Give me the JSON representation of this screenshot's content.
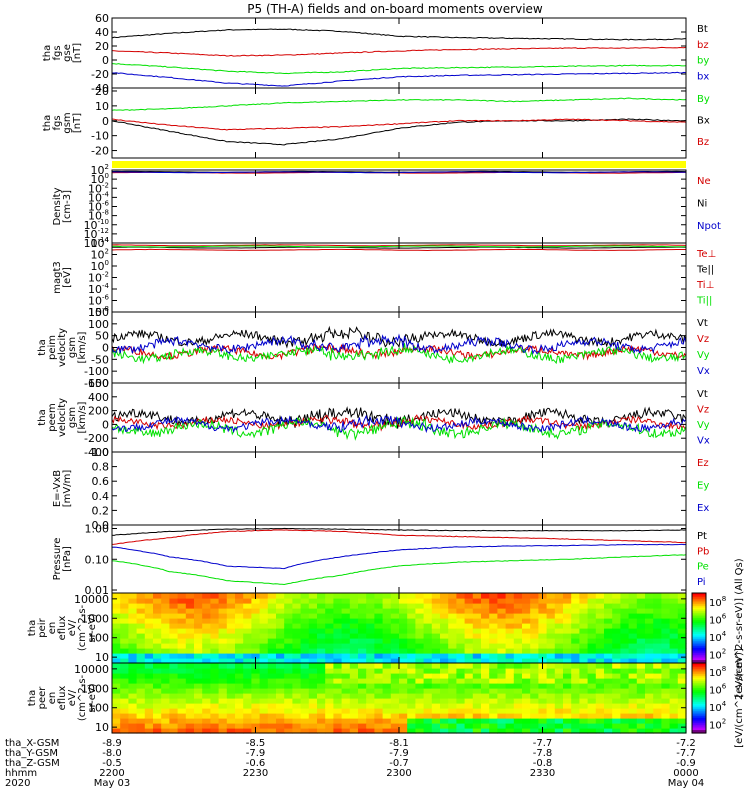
{
  "title": "P5 (TH-A) fields and on-board moments overview",
  "colors": {
    "black": "#000000",
    "red": "#d40000",
    "green": "#00e000",
    "blue": "#0000cc",
    "yellow": "#ffff00"
  },
  "chart_data": [
    {
      "id": "fgs_gse",
      "type": "line",
      "ylabel": [
        "tha",
        "fgs",
        "gse",
        "[nT]"
      ],
      "ylim": [
        -40,
        60
      ],
      "yticks": [
        -40,
        -20,
        0,
        20,
        40,
        60
      ],
      "series": [
        {
          "name": "Bt",
          "color": "black",
          "x": [
            0,
            0.1,
            0.2,
            0.3,
            0.4,
            0.5,
            0.6,
            0.7,
            0.8,
            0.9,
            1.0
          ],
          "y": [
            32,
            38,
            43,
            44,
            41,
            34,
            32,
            31,
            30,
            29,
            30
          ]
        },
        {
          "name": "bz",
          "color": "red",
          "x": [
            0,
            0.1,
            0.2,
            0.3,
            0.4,
            0.5,
            0.6,
            0.7,
            0.8,
            0.9,
            1.0
          ],
          "y": [
            13,
            10,
            6,
            7,
            10,
            13,
            15,
            16,
            17,
            17,
            18
          ]
        },
        {
          "name": "by",
          "color": "green",
          "x": [
            0,
            0.1,
            0.2,
            0.3,
            0.4,
            0.5,
            0.6,
            0.7,
            0.8,
            0.9,
            1.0
          ],
          "y": [
            -5,
            -10,
            -16,
            -19,
            -17,
            -12,
            -11,
            -10,
            -9,
            -8,
            -8
          ]
        },
        {
          "name": "bx",
          "color": "blue",
          "x": [
            0,
            0.1,
            0.2,
            0.3,
            0.4,
            0.5,
            0.6,
            0.7,
            0.8,
            0.9,
            1.0
          ],
          "y": [
            -18,
            -25,
            -33,
            -37,
            -30,
            -24,
            -22,
            -21,
            -20,
            -19,
            -18
          ]
        }
      ]
    },
    {
      "id": "fgs_gsm",
      "type": "line",
      "ylabel": [
        "tha",
        "fgs",
        "gsm",
        "[nT]"
      ],
      "ylim": [
        -25,
        22
      ],
      "yticks": [
        -20,
        -10,
        0,
        10,
        20
      ],
      "series": [
        {
          "name": "By",
          "color": "green",
          "x": [
            0,
            0.1,
            0.2,
            0.3,
            0.4,
            0.5,
            0.6,
            0.7,
            0.8,
            0.9,
            1.0
          ],
          "y": [
            7,
            8,
            10,
            12,
            13,
            14,
            14,
            13,
            14,
            15,
            14
          ]
        },
        {
          "name": "Bx",
          "color": "black",
          "x": [
            0,
            0.1,
            0.2,
            0.3,
            0.4,
            0.5,
            0.6,
            0.7,
            0.8,
            0.9,
            1.0
          ],
          "y": [
            0,
            -7,
            -14,
            -16,
            -12,
            -5,
            -1,
            0,
            0,
            1,
            0
          ]
        },
        {
          "name": "Bz",
          "color": "red",
          "x": [
            0,
            0.1,
            0.2,
            0.3,
            0.4,
            0.5,
            0.6,
            0.7,
            0.8,
            0.9,
            1.0
          ],
          "y": [
            1,
            -3,
            -6,
            -5,
            -4,
            -2,
            0,
            0,
            1,
            0,
            -1
          ]
        }
      ]
    },
    {
      "id": "density",
      "type": "line",
      "log": true,
      "ylabel": [
        "Density",
        "[cm-3]"
      ],
      "ylim_exp": [
        -14,
        2
      ],
      "yticks_exp": [
        -14,
        -12,
        -10,
        -8,
        -6,
        -4,
        -2,
        0,
        2
      ],
      "series": [
        {
          "name": "Ne",
          "color": "red",
          "level_exp": 1.4
        },
        {
          "name": "Ni",
          "color": "black",
          "level_exp": 1.6
        },
        {
          "name": "Npot",
          "color": "blue",
          "level_exp": 1.5
        }
      ]
    },
    {
      "id": "temps",
      "type": "line",
      "log": true,
      "ylabel": [
        "magt3",
        "[eV]"
      ],
      "ylim_exp": [
        -8,
        4
      ],
      "yticks_exp": [
        -8,
        -6,
        -4,
        -2,
        0,
        2,
        4
      ],
      "series": [
        {
          "name": "Te⊥",
          "color": "red",
          "level_exp": 2.8
        },
        {
          "name": "Te||",
          "color": "black",
          "level_exp": 3.2
        },
        {
          "name": "Ti⊥",
          "color": "red",
          "level_exp": 3.6
        },
        {
          "name": "Ti||",
          "color": "green",
          "level_exp": 3.4
        }
      ]
    },
    {
      "id": "peim_vel",
      "type": "line",
      "ylabel": [
        "tha",
        "peim",
        "velocity",
        "gsm",
        "[km/s]"
      ],
      "ylim": [
        -150,
        150
      ],
      "yticks": [
        -150,
        -100,
        -50,
        0,
        50,
        100,
        150
      ],
      "series": [
        {
          "name": "Vt",
          "color": "black",
          "base": 40,
          "amp": 30
        },
        {
          "name": "Vz",
          "color": "red",
          "base": -20,
          "amp": 25
        },
        {
          "name": "Vy",
          "color": "green",
          "base": -30,
          "amp": 30
        },
        {
          "name": "Vx",
          "color": "blue",
          "base": 10,
          "amp": 30
        }
      ]
    },
    {
      "id": "peem_vel",
      "type": "line",
      "ylabel": [
        "tha",
        "peem",
        "velocity",
        "gsm",
        "[km/s]"
      ],
      "ylim": [
        -400,
        600
      ],
      "yticks": [
        -400,
        -200,
        0,
        200,
        400,
        600
      ],
      "series": [
        {
          "name": "Vt",
          "color": "black",
          "base": 100,
          "amp": 120
        },
        {
          "name": "Vz",
          "color": "red",
          "base": 20,
          "amp": 80
        },
        {
          "name": "Vy",
          "color": "green",
          "base": -60,
          "amp": 120
        },
        {
          "name": "Vx",
          "color": "blue",
          "base": 0,
          "amp": 90
        }
      ]
    },
    {
      "id": "efield",
      "type": "line",
      "ylabel": [
        "E=-VxB",
        "[mV/m]"
      ],
      "ylim": [
        0,
        1.0
      ],
      "yticks": [
        0.0,
        0.2,
        0.4,
        0.6,
        0.8,
        1.0
      ],
      "series": [
        {
          "name": "Ez",
          "color": "red"
        },
        {
          "name": "Ey",
          "color": "green"
        },
        {
          "name": "Ex",
          "color": "blue"
        }
      ]
    },
    {
      "id": "pressure",
      "type": "line",
      "log": true,
      "ylabel": [
        "Pressure",
        "[nPa]"
      ],
      "ylim": [
        0.008,
        1.3
      ],
      "yticks": [
        0.01,
        0.1,
        1.0
      ],
      "series": [
        {
          "name": "Pt",
          "color": "black",
          "x": [
            0,
            0.1,
            0.2,
            0.3,
            0.4,
            0.5,
            0.6,
            0.7,
            0.8,
            0.9,
            1.0
          ],
          "y": [
            0.6,
            0.8,
            0.95,
            1.0,
            0.95,
            0.9,
            0.85,
            0.85,
            0.85,
            0.85,
            0.9
          ]
        },
        {
          "name": "Pb",
          "color": "red",
          "x": [
            0,
            0.1,
            0.2,
            0.3,
            0.4,
            0.5,
            0.6,
            0.7,
            0.8,
            0.9,
            1.0
          ],
          "y": [
            0.3,
            0.5,
            0.8,
            0.9,
            0.8,
            0.6,
            0.55,
            0.5,
            0.45,
            0.4,
            0.35
          ]
        },
        {
          "name": "Pe",
          "color": "green",
          "x": [
            0,
            0.1,
            0.2,
            0.3,
            0.4,
            0.5,
            0.6,
            0.7,
            0.8,
            0.9,
            1.0
          ],
          "y": [
            0.09,
            0.04,
            0.02,
            0.015,
            0.03,
            0.06,
            0.08,
            0.09,
            0.1,
            0.12,
            0.14
          ]
        },
        {
          "name": "Pi",
          "color": "blue",
          "x": [
            0,
            0.1,
            0.2,
            0.3,
            0.4,
            0.5,
            0.6,
            0.7,
            0.8,
            0.9,
            1.0
          ],
          "y": [
            0.25,
            0.12,
            0.06,
            0.05,
            0.12,
            0.2,
            0.25,
            0.27,
            0.28,
            0.3,
            0.3
          ]
        }
      ]
    },
    {
      "id": "peir_eflux",
      "type": "heatmap",
      "ylabel": [
        "tha",
        "peir",
        "en",
        "eflux",
        "eV/",
        "(cm^2-s-",
        "sr-eV)"
      ],
      "ylim": [
        5,
        20000
      ],
      "yticks": [
        10,
        100,
        1000,
        10000
      ],
      "colorbar": {
        "label": "[eV/(cm^2-s-sr-eV)] (All Qs)",
        "ticks_exp": [
          2,
          4,
          6,
          8
        ],
        "range_exp": [
          1,
          9
        ]
      }
    },
    {
      "id": "peer_eflux",
      "type": "heatmap",
      "ylabel": [
        "tha",
        "peer",
        "en",
        "eflux",
        "eV/",
        "(cm^2-s-",
        "sr-eV)"
      ],
      "ylim": [
        5,
        20000
      ],
      "yticks": [
        10,
        100,
        1000,
        10000
      ],
      "colorbar": {
        "label": "[eV/(cm^2-s-sr-eV)]",
        "ticks_exp": [
          2,
          4,
          6,
          8
        ],
        "range_exp": [
          1,
          9
        ]
      }
    }
  ],
  "xaxis": {
    "rows": [
      {
        "label": "tha_X-GSM",
        "values": [
          "-8.9",
          "-8.5",
          "-8.1",
          "-7.7",
          "-7.2"
        ]
      },
      {
        "label": "tha_Y-GSM",
        "values": [
          "-8.0",
          "-7.9",
          "-7.9",
          "-7.8",
          "-7.7"
        ]
      },
      {
        "label": "tha_Z-GSM",
        "values": [
          "-0.5",
          "-0.6",
          "-0.7",
          "-0.8",
          "-0.9"
        ]
      },
      {
        "label": "hhmm",
        "values": [
          "2200",
          "2230",
          "2300",
          "2330",
          "0000"
        ]
      }
    ],
    "year": "2020",
    "date_start": "May 03",
    "date_end": "May 04"
  }
}
